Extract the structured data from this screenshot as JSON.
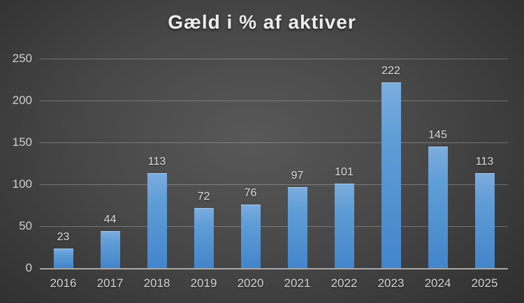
{
  "chart_data": {
    "type": "bar",
    "title": "Gæld i % af aktiver",
    "categories": [
      "2016",
      "2017",
      "2018",
      "2019",
      "2020",
      "2021",
      "2022",
      "2023",
      "2024",
      "2025"
    ],
    "values": [
      23,
      44,
      113,
      72,
      76,
      97,
      101,
      222,
      145,
      113
    ],
    "xlabel": "",
    "ylabel": "",
    "ylim": [
      0,
      250
    ],
    "yticks": [
      0,
      50,
      100,
      150,
      200,
      250
    ],
    "grid": true,
    "legend": false,
    "data_labels": true,
    "colors": {
      "bar_top": "#7cadde",
      "bar_bottom": "#4385cb",
      "background_center": "#585858",
      "background_edge": "#262626",
      "gridline": "rgba(255,255,255,0.26)",
      "axis_line": "#a8a8a8",
      "title_text": "#ededed",
      "tick_text": "#cfcfcf",
      "value_label_text": "#dcdcdc"
    }
  }
}
